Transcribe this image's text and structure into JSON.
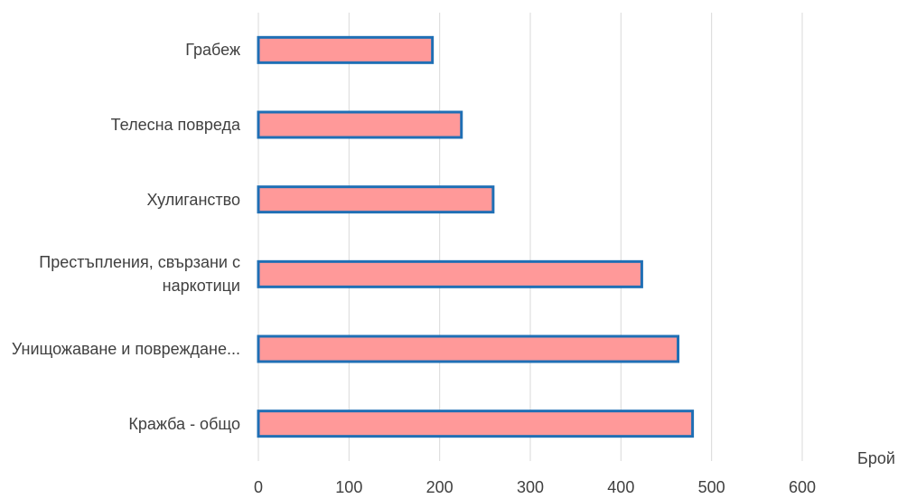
{
  "chart_data": {
    "type": "barh",
    "x_label": "Брой",
    "categories": [
      "Грабеж",
      "Телесна повреда",
      "Хулиганство",
      "Престъпления, свързани с наркотици",
      "Унищожаване и повреждане...",
      "Кражба - общо"
    ],
    "values": [
      192,
      224,
      259,
      423,
      463,
      479
    ],
    "color": "#ff9999",
    "edge_color": "#1f6fb5",
    "xlim": [
      0,
      600
    ],
    "xticks": [
      0,
      100,
      200,
      300,
      400,
      500,
      600
    ],
    "grid": true
  }
}
